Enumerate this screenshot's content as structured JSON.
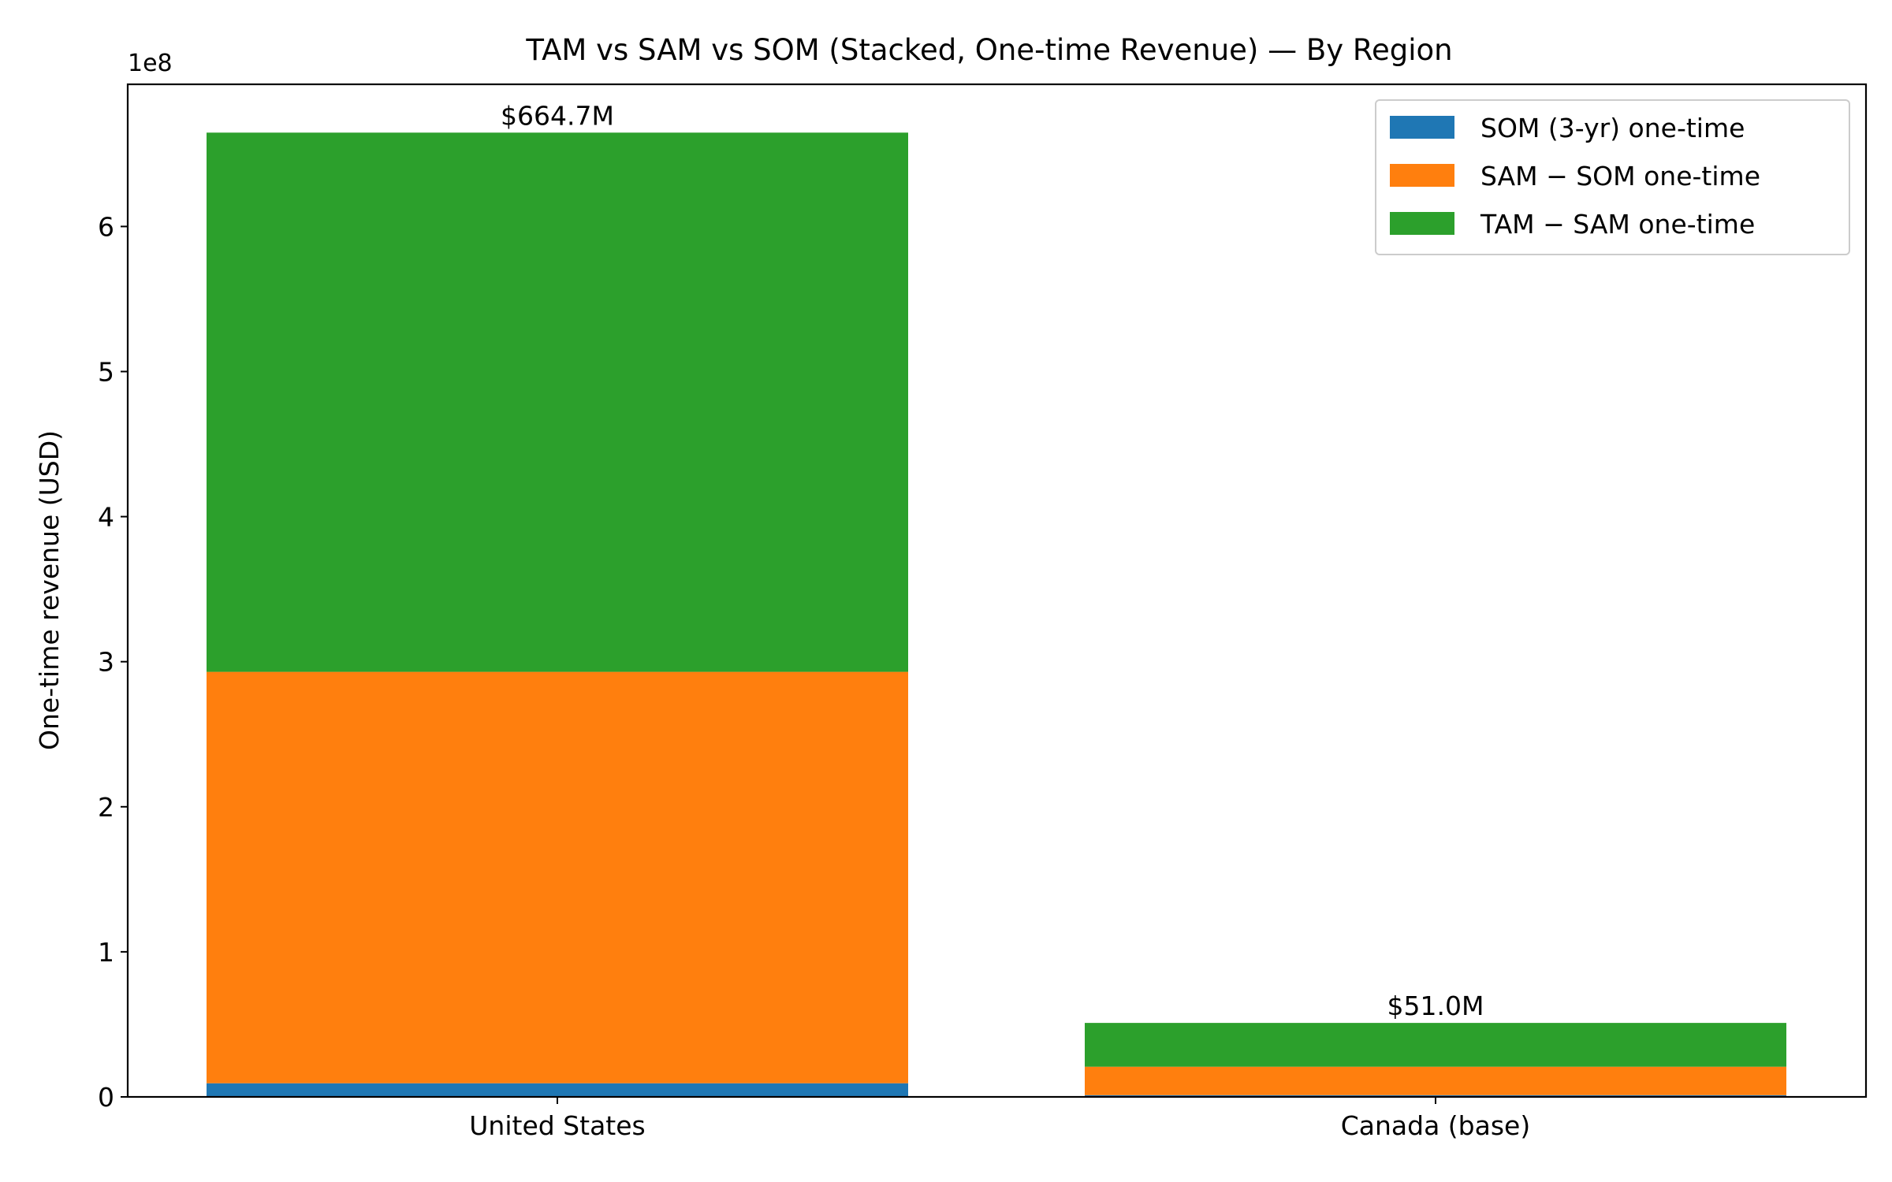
{
  "chart_data": {
    "type": "bar",
    "stacked": true,
    "title": "TAM vs SAM vs SOM (Stacked, One-time Revenue) — By Region",
    "xlabel": "",
    "ylabel": "One-time revenue (USD)",
    "y_offset_label": "1e8",
    "categories": [
      "United States",
      "Canada (base)"
    ],
    "series": [
      {
        "name": "SOM (3-yr) one-time",
        "color": "#1f77b4",
        "values": [
          9400000,
          1200000
        ]
      },
      {
        "name": "SAM − SOM one-time",
        "color": "#ff7f0e",
        "values": [
          283600000,
          19600000
        ]
      },
      {
        "name": "TAM − SAM one-time",
        "color": "#2ca02c",
        "values": [
          371700000,
          30200000
        ]
      }
    ],
    "totals_labels": [
      "$664.7M",
      "$51.0M"
    ],
    "ylim": [
      0,
      698000000
    ],
    "yticks": [
      {
        "value": 0,
        "label": "0"
      },
      {
        "value": 100000000,
        "label": "1"
      },
      {
        "value": 200000000,
        "label": "2"
      },
      {
        "value": 300000000,
        "label": "3"
      },
      {
        "value": 400000000,
        "label": "4"
      },
      {
        "value": 500000000,
        "label": "5"
      },
      {
        "value": 600000000,
        "label": "6"
      }
    ],
    "legend_position": "top-right",
    "grid": false
  }
}
